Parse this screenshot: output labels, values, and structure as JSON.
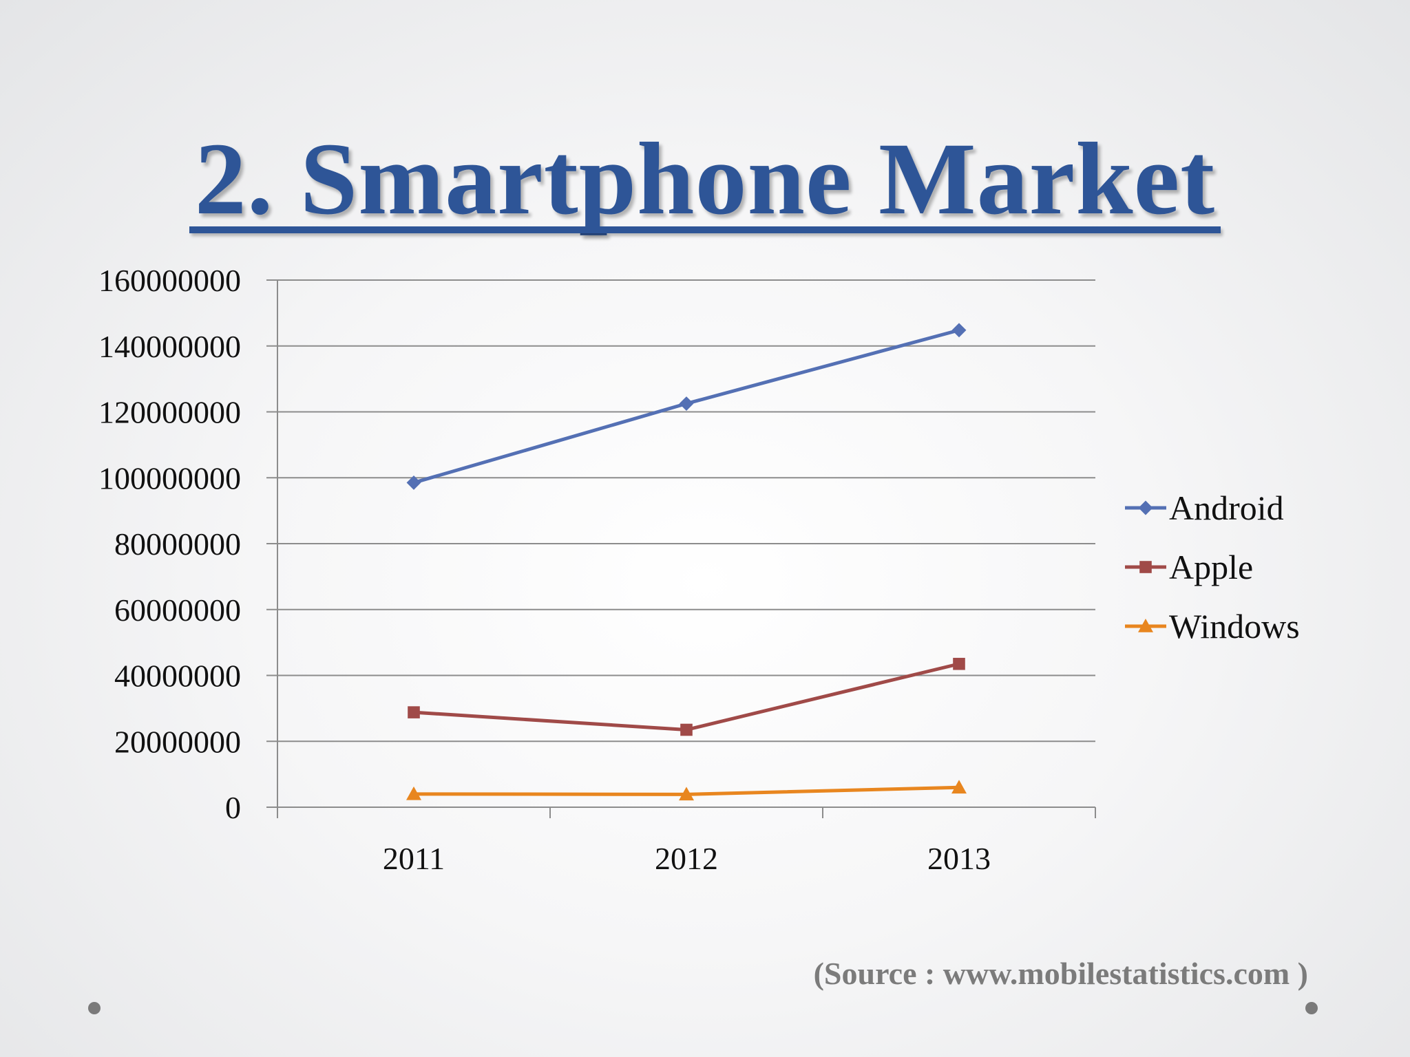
{
  "slide": {
    "title": "2. Smartphone Market",
    "source": "(Source : www.mobilestatistics.com )"
  },
  "colors": {
    "title": "#2e5597",
    "android": "#5470b4",
    "apple": "#a04a48",
    "windows": "#e8861f",
    "grid": "#8c8c8c",
    "source_text": "#7b7b7b"
  },
  "chart_data": {
    "type": "line",
    "title": "",
    "xlabel": "",
    "ylabel": "",
    "categories": [
      "2011",
      "2012",
      "2013"
    ],
    "ylim": [
      0,
      160000000
    ],
    "yticks": [
      "0",
      "20000000",
      "40000000",
      "60000000",
      "80000000",
      "100000000",
      "120000000",
      "140000000",
      "160000000"
    ],
    "grid": true,
    "legend_position": "right",
    "series": [
      {
        "name": "Android",
        "marker": "diamond",
        "color": "#5470b4",
        "values": [
          98500000,
          122500000,
          144800000
        ]
      },
      {
        "name": "Apple",
        "marker": "square",
        "color": "#a04a48",
        "values": [
          28800000,
          23500000,
          43500000
        ]
      },
      {
        "name": "Windows",
        "marker": "triangle",
        "color": "#e8861f",
        "values": [
          4000000,
          3900000,
          6000000
        ]
      }
    ]
  }
}
